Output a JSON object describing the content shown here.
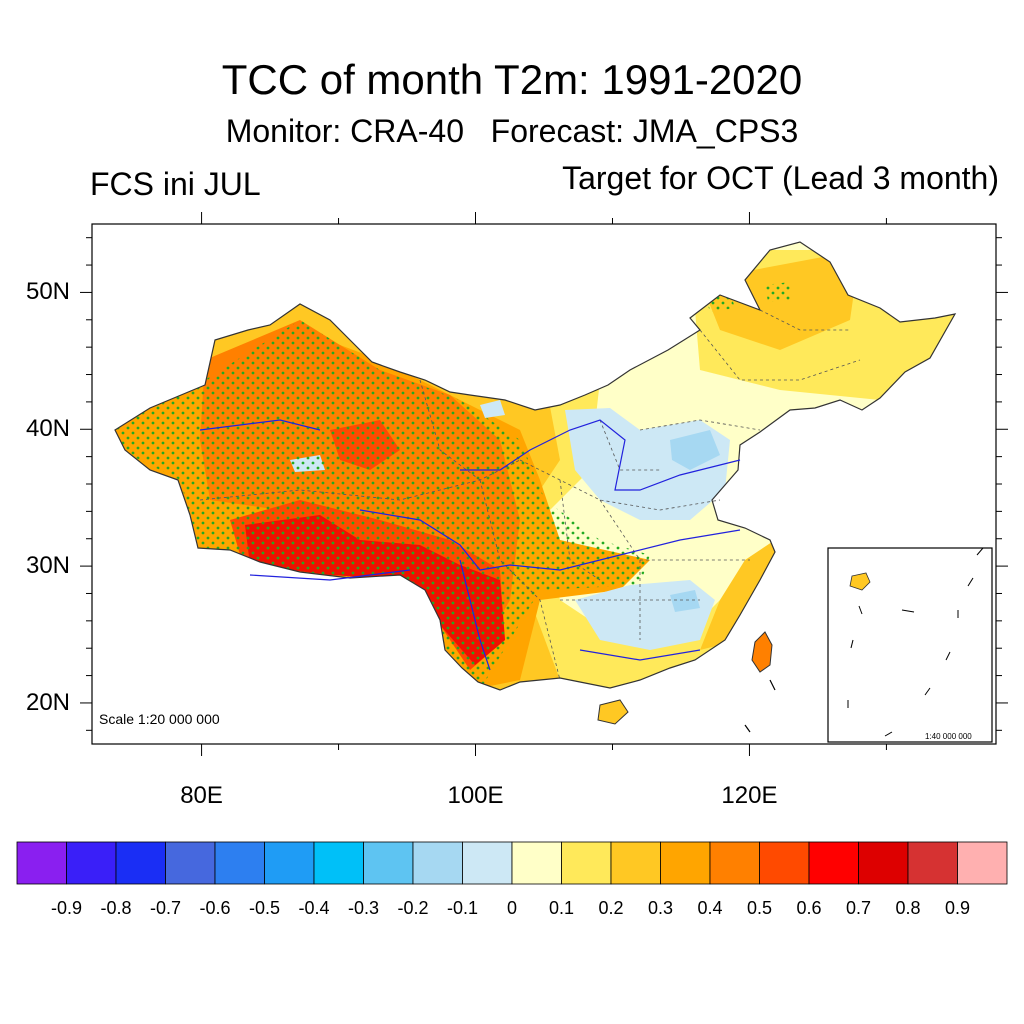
{
  "title": "TCC of month T2m: 1991-2020",
  "subtitle": "Monitor: CRA-40   Forecast: JMA_CPS3",
  "left_label": "FCS ini JUL",
  "right_label": "Target for OCT (Lead 3 month)",
  "scale_note": "Scale 1:20 000 000",
  "inset_scale_note": "1:40 000 000",
  "map": {
    "lon_range": [
      72,
      138
    ],
    "lat_range": [
      17,
      55
    ],
    "lat_ticks": [
      {
        "value": 50,
        "label": "50N"
      },
      {
        "value": 40,
        "label": "40N"
      },
      {
        "value": 30,
        "label": "30N"
      },
      {
        "value": 20,
        "label": "20N"
      }
    ],
    "lon_ticks": [
      {
        "value": 80,
        "label": "80E"
      },
      {
        "value": 100,
        "label": "100E"
      },
      {
        "value": 120,
        "label": "120E"
      }
    ],
    "stipple_color": "#22aa22",
    "river_color": "#2222dd"
  },
  "colorbar": {
    "labels": [
      "-0.9",
      "-0.8",
      "-0.7",
      "-0.6",
      "-0.5",
      "-0.4",
      "-0.3",
      "-0.2",
      "-0.1",
      "0",
      "0.1",
      "0.2",
      "0.3",
      "0.4",
      "0.5",
      "0.6",
      "0.7",
      "0.8",
      "0.9"
    ],
    "colors": [
      "#8a1ff0",
      "#3a1ff8",
      "#1a2ef5",
      "#4668de",
      "#2d7ff0",
      "#1f9cf5",
      "#00c0f8",
      "#5ec4f2",
      "#a6d8f2",
      "#cde8f5",
      "#ffffc8",
      "#ffe95a",
      "#ffc823",
      "#ffa500",
      "#ff8000",
      "#ff4a00",
      "#ff0000",
      "#dd0000",
      "#d63232",
      "#ffb0b0"
    ]
  }
}
